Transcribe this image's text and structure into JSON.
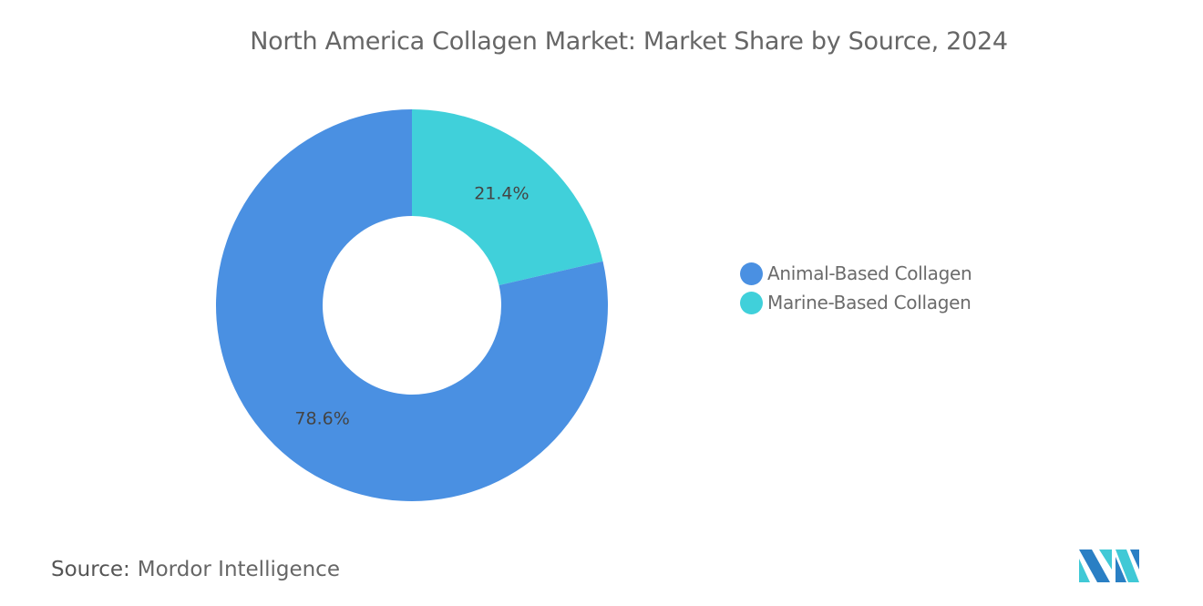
{
  "chart_data": {
    "type": "pie",
    "variant": "donut",
    "title": "North America Collagen Market: Market Share by Source, 2024",
    "categories": [
      "Marine-Based Collagen",
      "Animal-Based Collagen"
    ],
    "values": [
      21.4,
      78.6
    ],
    "data_labels": [
      "21.4%",
      "78.6%"
    ],
    "colors": [
      "#40D0DA",
      "#4A90E2"
    ],
    "legend": {
      "placement": "right",
      "entries": [
        {
          "label": "Animal-Based Collagen",
          "color": "#4A90E2"
        },
        {
          "label": "Marine-Based Collagen",
          "color": "#40D0DA"
        }
      ]
    }
  },
  "footer": {
    "source_label": "Source:",
    "source_value": "Mordor Intelligence",
    "logo_text": "Mordor Intelligence logo"
  }
}
